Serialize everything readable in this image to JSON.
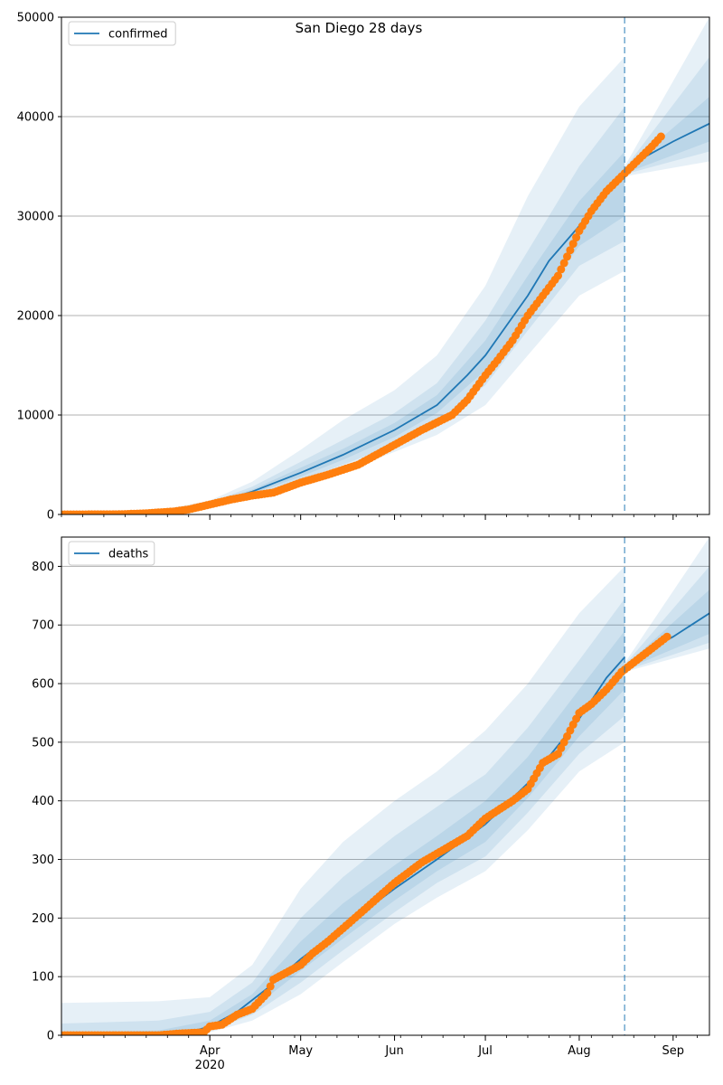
{
  "title": "San Diego 28 days",
  "colors": {
    "line": "#1f77b4",
    "observed": "#ff7f0e",
    "band": "#1f77b4",
    "grid": "#b0b0b0",
    "forecast_start_line": "#1f77b4"
  },
  "chart_data": [
    {
      "type": "line",
      "panel": "top",
      "x_type": "date",
      "xlim": [
        "2020-02-12",
        "2020-09-13"
      ],
      "ylim": [
        0,
        50000
      ],
      "yticks": [
        0,
        10000,
        20000,
        30000,
        40000,
        50000
      ],
      "xticks": [
        {
          "date": "2020-04-01",
          "label": "Apr",
          "sublabel": "2020"
        },
        {
          "date": "2020-05-01",
          "label": "May"
        },
        {
          "date": "2020-06-01",
          "label": "Jun"
        },
        {
          "date": "2020-07-01",
          "label": "Jul"
        },
        {
          "date": "2020-08-01",
          "label": "Aug"
        },
        {
          "date": "2020-09-01",
          "label": "Sep"
        }
      ],
      "grid": "horizontal",
      "legend": {
        "position": "top-left",
        "entries": [
          "confirmed"
        ]
      },
      "forecast_start": "2020-08-16",
      "series": [
        {
          "name": "confirmed",
          "kind": "model",
          "points": [
            [
              "2020-02-12",
              0
            ],
            [
              "2020-03-15",
              200
            ],
            [
              "2020-03-25",
              500
            ],
            [
              "2020-04-01",
              1000
            ],
            [
              "2020-04-15",
              2300
            ],
            [
              "2020-05-01",
              4200
            ],
            [
              "2020-05-15",
              6000
            ],
            [
              "2020-06-01",
              8500
            ],
            [
              "2020-06-15",
              11000
            ],
            [
              "2020-06-25",
              14000
            ],
            [
              "2020-07-01",
              16000
            ],
            [
              "2020-07-08",
              19000
            ],
            [
              "2020-07-15",
              22000
            ],
            [
              "2020-07-22",
              25500
            ],
            [
              "2020-08-01",
              29000
            ],
            [
              "2020-08-08",
              32000
            ],
            [
              "2020-08-16",
              34500
            ],
            [
              "2020-08-23",
              36000
            ],
            [
              "2020-09-01",
              37500
            ],
            [
              "2020-09-13",
              39300
            ]
          ]
        },
        {
          "name": "",
          "kind": "observed",
          "points": [
            [
              "2020-02-12",
              0
            ],
            [
              "2020-03-01",
              10
            ],
            [
              "2020-03-10",
              100
            ],
            [
              "2020-03-20",
              300
            ],
            [
              "2020-03-25",
              500
            ],
            [
              "2020-04-01",
              1000
            ],
            [
              "2020-04-08",
              1500
            ],
            [
              "2020-04-15",
              1900
            ],
            [
              "2020-04-22",
              2200
            ],
            [
              "2020-05-01",
              3200
            ],
            [
              "2020-05-10",
              4000
            ],
            [
              "2020-05-20",
              5000
            ],
            [
              "2020-06-01",
              7000
            ],
            [
              "2020-06-10",
              8500
            ],
            [
              "2020-06-20",
              10000
            ],
            [
              "2020-06-25",
              11500
            ],
            [
              "2020-07-01",
              14000
            ],
            [
              "2020-07-05",
              15500
            ],
            [
              "2020-07-10",
              17500
            ],
            [
              "2020-07-15",
              20000
            ],
            [
              "2020-07-20",
              22000
            ],
            [
              "2020-07-25",
              24000
            ],
            [
              "2020-08-01",
              28500
            ],
            [
              "2020-08-05",
              30500
            ],
            [
              "2020-08-10",
              32500
            ],
            [
              "2020-08-15",
              34000
            ],
            [
              "2020-08-20",
              35500
            ],
            [
              "2020-08-25",
              37000
            ],
            [
              "2020-08-28",
              38000
            ]
          ]
        }
      ],
      "uncertainty_bands": [
        {
          "points": [
            [
              "2020-02-12",
              0,
              0
            ],
            [
              "2020-03-15",
              150,
              400
            ],
            [
              "2020-04-01",
              800,
              1400
            ],
            [
              "2020-04-15",
              1700,
              3300
            ],
            [
              "2020-05-01",
              3000,
              6500
            ],
            [
              "2020-05-15",
              4300,
              9500
            ],
            [
              "2020-06-01",
              6300,
              12500
            ],
            [
              "2020-06-15",
              8000,
              16000
            ],
            [
              "2020-07-01",
              11000,
              23000
            ],
            [
              "2020-07-15",
              16000,
              32000
            ],
            [
              "2020-08-01",
              22000,
              41000
            ],
            [
              "2020-08-16",
              24500,
              46000
            ],
            [
              "2020-08-16",
              34000,
              35000
            ],
            [
              "2020-09-13",
              35500,
              50000
            ]
          ]
        },
        {
          "points": [
            [
              "2020-02-12",
              0,
              0
            ],
            [
              "2020-03-15",
              170,
              300
            ],
            [
              "2020-04-01",
              900,
              1200
            ],
            [
              "2020-04-15",
              1900,
              2800
            ],
            [
              "2020-05-01",
              3500,
              5300
            ],
            [
              "2020-05-15",
              5000,
              7500
            ],
            [
              "2020-06-01",
              7000,
              10200
            ],
            [
              "2020-06-15",
              9200,
              13200
            ],
            [
              "2020-07-01",
              13000,
              19500
            ],
            [
              "2020-07-15",
              18500,
              26500
            ],
            [
              "2020-08-01",
              25000,
              35000
            ],
            [
              "2020-08-16",
              27500,
              41000
            ],
            [
              "2020-08-16",
              34200,
              34800
            ],
            [
              "2020-09-13",
              36500,
              46000
            ]
          ]
        },
        {
          "points": [
            [
              "2020-02-12",
              0,
              0
            ],
            [
              "2020-03-15",
              180,
              240
            ],
            [
              "2020-04-01",
              950,
              1100
            ],
            [
              "2020-04-15",
              2100,
              2500
            ],
            [
              "2020-05-01",
              3800,
              4700
            ],
            [
              "2020-05-15",
              5500,
              6600
            ],
            [
              "2020-06-01",
              7800,
              9200
            ],
            [
              "2020-06-15",
              10200,
              12000
            ],
            [
              "2020-07-01",
              14500,
              17500
            ],
            [
              "2020-07-15",
              20000,
              24000
            ],
            [
              "2020-08-01",
              27000,
              31500
            ],
            [
              "2020-08-16",
              30000,
              36500
            ],
            [
              "2020-08-16",
              34300,
              34700
            ],
            [
              "2020-09-13",
              37500,
              42000
            ]
          ]
        }
      ]
    },
    {
      "type": "line",
      "panel": "bottom",
      "x_type": "date",
      "xlim": [
        "2020-02-12",
        "2020-09-13"
      ],
      "ylim": [
        0,
        850
      ],
      "yticks": [
        0,
        100,
        200,
        300,
        400,
        500,
        600,
        700,
        800
      ],
      "xticks": [
        {
          "date": "2020-04-01",
          "label": "Apr",
          "sublabel": "2020"
        },
        {
          "date": "2020-05-01",
          "label": "May"
        },
        {
          "date": "2020-06-01",
          "label": "Jun"
        },
        {
          "date": "2020-07-01",
          "label": "Jul"
        },
        {
          "date": "2020-08-01",
          "label": "Aug"
        },
        {
          "date": "2020-09-01",
          "label": "Sep"
        }
      ],
      "grid": "horizontal",
      "legend": {
        "position": "top-left",
        "entries": [
          "deaths"
        ]
      },
      "forecast_start": "2020-08-16",
      "series": [
        {
          "name": "deaths",
          "kind": "model",
          "points": [
            [
              "2020-02-12",
              0
            ],
            [
              "2020-03-15",
              2
            ],
            [
              "2020-03-25",
              5
            ],
            [
              "2020-04-01",
              15
            ],
            [
              "2020-04-10",
              40
            ],
            [
              "2020-04-20",
              80
            ],
            [
              "2020-05-01",
              130
            ],
            [
              "2020-05-15",
              185
            ],
            [
              "2020-06-01",
              250
            ],
            [
              "2020-06-15",
              300
            ],
            [
              "2020-07-01",
              360
            ],
            [
              "2020-07-15",
              430
            ],
            [
              "2020-08-01",
              540
            ],
            [
              "2020-08-10",
              610
            ],
            [
              "2020-08-16",
              645
            ],
            [
              "2020-08-16",
              625
            ],
            [
              "2020-08-23",
              655
            ],
            [
              "2020-09-01",
              680
            ],
            [
              "2020-09-13",
              720
            ]
          ]
        },
        {
          "name": "",
          "kind": "observed",
          "points": [
            [
              "2020-02-12",
              0
            ],
            [
              "2020-03-15",
              0
            ],
            [
              "2020-03-22",
              3
            ],
            [
              "2020-03-30",
              5
            ],
            [
              "2020-04-01",
              15
            ],
            [
              "2020-04-05",
              18
            ],
            [
              "2020-04-10",
              35
            ],
            [
              "2020-04-15",
              45
            ],
            [
              "2020-04-20",
              72
            ],
            [
              "2020-04-22",
              95
            ],
            [
              "2020-05-01",
              120
            ],
            [
              "2020-05-05",
              140
            ],
            [
              "2020-05-10",
              160
            ],
            [
              "2020-05-20",
              205
            ],
            [
              "2020-06-01",
              260
            ],
            [
              "2020-06-10",
              295
            ],
            [
              "2020-06-20",
              325
            ],
            [
              "2020-06-25",
              340
            ],
            [
              "2020-07-01",
              370
            ],
            [
              "2020-07-10",
              400
            ],
            [
              "2020-07-15",
              420
            ],
            [
              "2020-07-20",
              465
            ],
            [
              "2020-07-25",
              480
            ],
            [
              "2020-08-01",
              550
            ],
            [
              "2020-08-05",
              565
            ],
            [
              "2020-08-10",
              590
            ],
            [
              "2020-08-15",
              620
            ],
            [
              "2020-08-20",
              640
            ],
            [
              "2020-08-25",
              660
            ],
            [
              "2020-08-30",
              680
            ]
          ]
        }
      ],
      "uncertainty_bands": [
        {
          "points": [
            [
              "2020-02-12",
              0,
              55
            ],
            [
              "2020-03-15",
              0,
              58
            ],
            [
              "2020-04-01",
              5,
              65
            ],
            [
              "2020-04-15",
              25,
              120
            ],
            [
              "2020-05-01",
              70,
              250
            ],
            [
              "2020-05-15",
              125,
              330
            ],
            [
              "2020-06-01",
              190,
              400
            ],
            [
              "2020-06-15",
              235,
              450
            ],
            [
              "2020-07-01",
              280,
              520
            ],
            [
              "2020-07-15",
              350,
              600
            ],
            [
              "2020-08-01",
              450,
              720
            ],
            [
              "2020-08-16",
              500,
              800
            ],
            [
              "2020-08-16",
              620,
              635
            ],
            [
              "2020-09-13",
              660,
              850
            ]
          ]
        },
        {
          "points": [
            [
              "2020-02-12",
              0,
              20
            ],
            [
              "2020-03-15",
              0,
              25
            ],
            [
              "2020-04-01",
              8,
              40
            ],
            [
              "2020-04-15",
              35,
              90
            ],
            [
              "2020-05-01",
              90,
              200
            ],
            [
              "2020-05-15",
              145,
              270
            ],
            [
              "2020-06-01",
              210,
              340
            ],
            [
              "2020-06-15",
              260,
              390
            ],
            [
              "2020-07-01",
              305,
              445
            ],
            [
              "2020-07-15",
              380,
              525
            ],
            [
              "2020-08-01",
              480,
              640
            ],
            [
              "2020-08-16",
              545,
              745
            ],
            [
              "2020-08-16",
              622,
              632
            ],
            [
              "2020-09-13",
              670,
              800
            ]
          ]
        },
        {
          "points": [
            [
              "2020-02-12",
              0,
              5
            ],
            [
              "2020-03-15",
              0,
              8
            ],
            [
              "2020-04-01",
              10,
              25
            ],
            [
              "2020-04-15",
              45,
              70
            ],
            [
              "2020-05-01",
              110,
              160
            ],
            [
              "2020-05-15",
              165,
              225
            ],
            [
              "2020-06-01",
              230,
              290
            ],
            [
              "2020-06-15",
              280,
              340
            ],
            [
              "2020-07-01",
              330,
              400
            ],
            [
              "2020-07-15",
              405,
              475
            ],
            [
              "2020-08-01",
              510,
              590
            ],
            [
              "2020-08-16",
              590,
              690
            ],
            [
              "2020-08-16",
              624,
              630
            ],
            [
              "2020-09-13",
              685,
              760
            ]
          ]
        }
      ]
    }
  ]
}
